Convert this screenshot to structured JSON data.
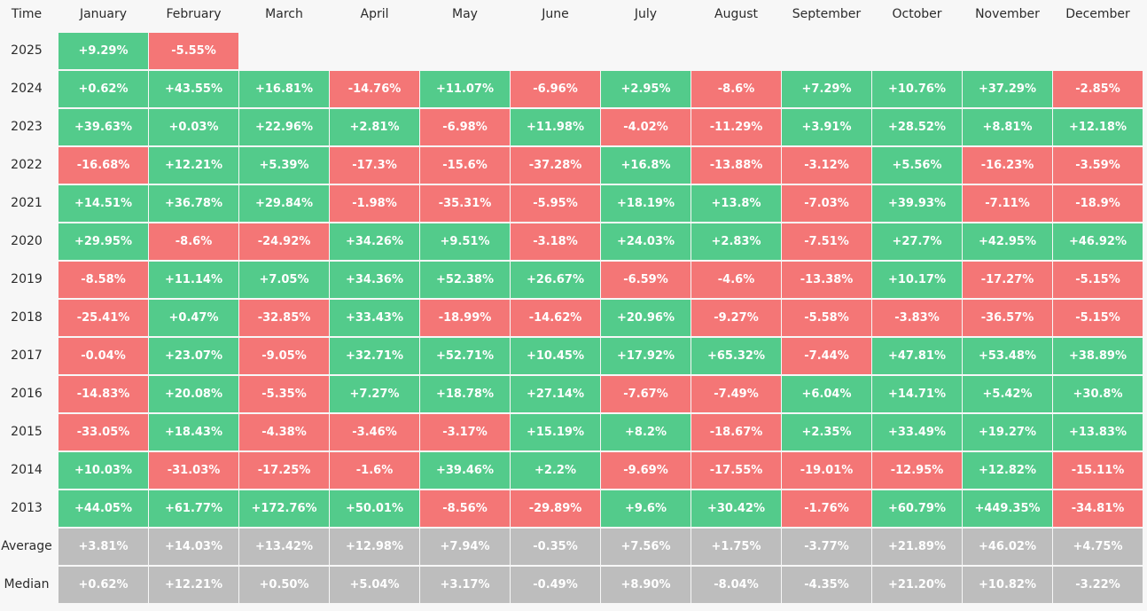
{
  "colors": {
    "positive": "#53cb8b",
    "negative": "#f47676",
    "summary": "#bdbdbd",
    "text": "#ffffff"
  },
  "chart_data": {
    "type": "heatmap",
    "corner_label": "Time",
    "columns": [
      "January",
      "February",
      "March",
      "April",
      "May",
      "June",
      "July",
      "August",
      "September",
      "October",
      "November",
      "December"
    ],
    "rows": [
      {
        "label": "2025",
        "kind": "data",
        "values": [
          "+9.29%",
          "-5.55%"
        ]
      },
      {
        "label": "2024",
        "kind": "data",
        "values": [
          "+0.62%",
          "+43.55%",
          "+16.81%",
          "-14.76%",
          "+11.07%",
          "-6.96%",
          "+2.95%",
          "-8.6%",
          "+7.29%",
          "+10.76%",
          "+37.29%",
          "-2.85%"
        ]
      },
      {
        "label": "2023",
        "kind": "data",
        "values": [
          "+39.63%",
          "+0.03%",
          "+22.96%",
          "+2.81%",
          "-6.98%",
          "+11.98%",
          "-4.02%",
          "-11.29%",
          "+3.91%",
          "+28.52%",
          "+8.81%",
          "+12.18%"
        ]
      },
      {
        "label": "2022",
        "kind": "data",
        "values": [
          "-16.68%",
          "+12.21%",
          "+5.39%",
          "-17.3%",
          "-15.6%",
          "-37.28%",
          "+16.8%",
          "-13.88%",
          "-3.12%",
          "+5.56%",
          "-16.23%",
          "-3.59%"
        ]
      },
      {
        "label": "2021",
        "kind": "data",
        "values": [
          "+14.51%",
          "+36.78%",
          "+29.84%",
          "-1.98%",
          "-35.31%",
          "-5.95%",
          "+18.19%",
          "+13.8%",
          "-7.03%",
          "+39.93%",
          "-7.11%",
          "-18.9%"
        ]
      },
      {
        "label": "2020",
        "kind": "data",
        "values": [
          "+29.95%",
          "-8.6%",
          "-24.92%",
          "+34.26%",
          "+9.51%",
          "-3.18%",
          "+24.03%",
          "+2.83%",
          "-7.51%",
          "+27.7%",
          "+42.95%",
          "+46.92%"
        ]
      },
      {
        "label": "2019",
        "kind": "data",
        "values": [
          "-8.58%",
          "+11.14%",
          "+7.05%",
          "+34.36%",
          "+52.38%",
          "+26.67%",
          "-6.59%",
          "-4.6%",
          "-13.38%",
          "+10.17%",
          "-17.27%",
          "-5.15%"
        ]
      },
      {
        "label": "2018",
        "kind": "data",
        "values": [
          "-25.41%",
          "+0.47%",
          "-32.85%",
          "+33.43%",
          "-18.99%",
          "-14.62%",
          "+20.96%",
          "-9.27%",
          "-5.58%",
          "-3.83%",
          "-36.57%",
          "-5.15%"
        ]
      },
      {
        "label": "2017",
        "kind": "data",
        "values": [
          "-0.04%",
          "+23.07%",
          "-9.05%",
          "+32.71%",
          "+52.71%",
          "+10.45%",
          "+17.92%",
          "+65.32%",
          "-7.44%",
          "+47.81%",
          "+53.48%",
          "+38.89%"
        ]
      },
      {
        "label": "2016",
        "kind": "data",
        "values": [
          "-14.83%",
          "+20.08%",
          "-5.35%",
          "+7.27%",
          "+18.78%",
          "+27.14%",
          "-7.67%",
          "-7.49%",
          "+6.04%",
          "+14.71%",
          "+5.42%",
          "+30.8%"
        ]
      },
      {
        "label": "2015",
        "kind": "data",
        "values": [
          "-33.05%",
          "+18.43%",
          "-4.38%",
          "-3.46%",
          "-3.17%",
          "+15.19%",
          "+8.2%",
          "-18.67%",
          "+2.35%",
          "+33.49%",
          "+19.27%",
          "+13.83%"
        ]
      },
      {
        "label": "2014",
        "kind": "data",
        "values": [
          "+10.03%",
          "-31.03%",
          "-17.25%",
          "-1.6%",
          "+39.46%",
          "+2.2%",
          "-9.69%",
          "-17.55%",
          "-19.01%",
          "-12.95%",
          "+12.82%",
          "-15.11%"
        ]
      },
      {
        "label": "2013",
        "kind": "data",
        "values": [
          "+44.05%",
          "+61.77%",
          "+172.76%",
          "+50.01%",
          "-8.56%",
          "-29.89%",
          "+9.6%",
          "+30.42%",
          "-1.76%",
          "+60.79%",
          "+449.35%",
          "-34.81%"
        ]
      },
      {
        "label": "Average",
        "kind": "summary",
        "values": [
          "+3.81%",
          "+14.03%",
          "+13.42%",
          "+12.98%",
          "+7.94%",
          "-0.35%",
          "+7.56%",
          "+1.75%",
          "-3.77%",
          "+21.89%",
          "+46.02%",
          "+4.75%"
        ]
      },
      {
        "label": "Median",
        "kind": "summary",
        "values": [
          "+0.62%",
          "+12.21%",
          "+0.50%",
          "+5.04%",
          "+3.17%",
          "-0.49%",
          "+8.90%",
          "-8.04%",
          "-4.35%",
          "+21.20%",
          "+10.82%",
          "-3.22%"
        ]
      }
    ]
  }
}
